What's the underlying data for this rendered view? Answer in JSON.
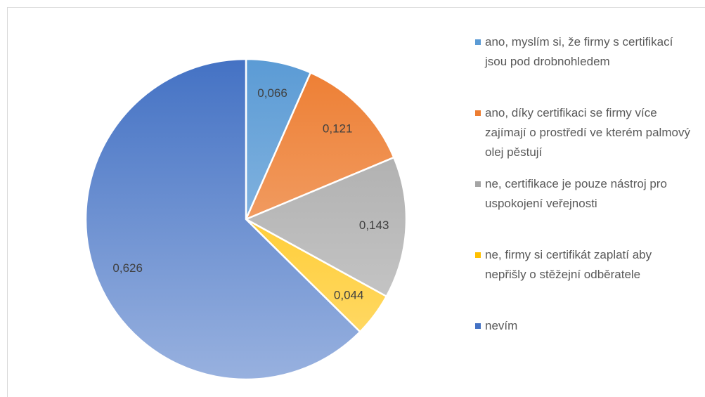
{
  "chart_data": {
    "type": "pie",
    "categories": [
      "ano, myslím si, že firmy s certifikací jsou pod drobnohledem",
      "ano, díky certifikaci se firmy více zajímají o prostředí ve kterém palmový olej pěstují",
      "ne, certifikace je pouze nástroj pro uspokojení veřejnosti",
      "ne, firmy si certifikát zaplatí aby nepřišly o stěžejní odběratele",
      "nevím"
    ],
    "values": [
      0.066,
      0.121,
      0.143,
      0.044,
      0.626
    ],
    "value_labels": [
      "0,066",
      "0,121",
      "0,143",
      "0,044",
      "0,626"
    ],
    "colors": [
      "#5b9bd5",
      "#ed7d31",
      "#a5a5a5",
      "#ffc000",
      "#4472c4"
    ],
    "legend": "right"
  }
}
